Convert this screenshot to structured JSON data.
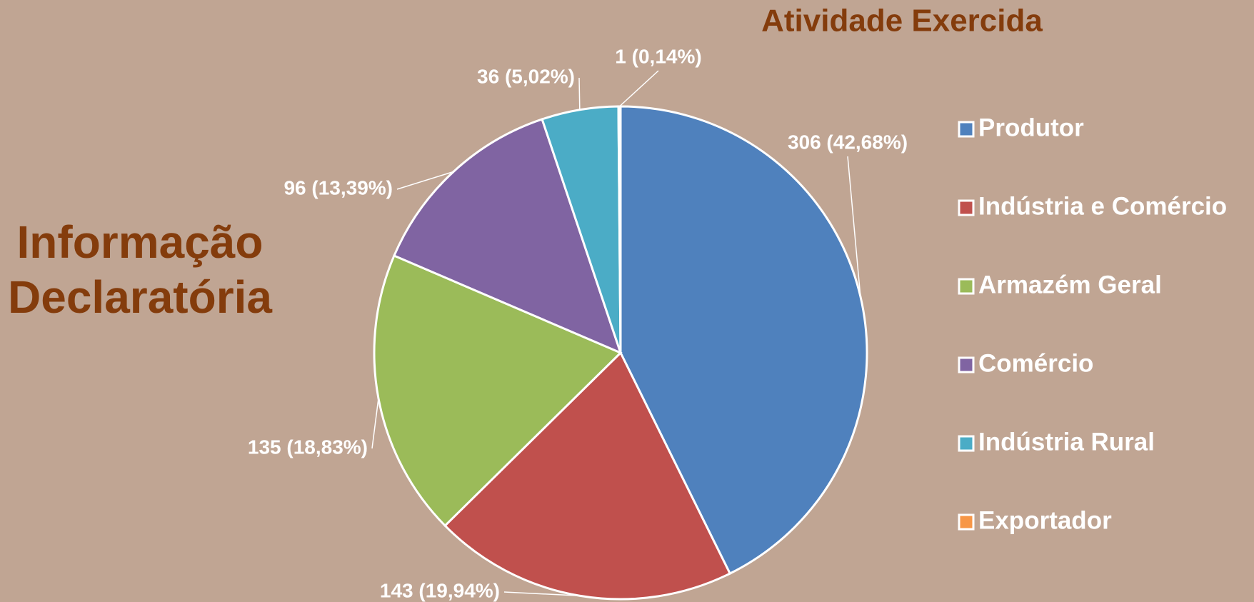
{
  "chart_data": {
    "type": "pie",
    "title": "Atividade Exercida",
    "annotations": [
      "Informação",
      "Declaratória"
    ],
    "categories": [
      "Produtor",
      "Indústria e Comércio",
      "Armazém Geral",
      "Comércio",
      "Indústria Rural",
      "Exportador"
    ],
    "values": [
      306,
      143,
      135,
      96,
      36,
      1
    ],
    "value_labels": [
      "306 (42,68%)",
      "143 (19,94%)",
      "135 (18,83%)",
      "96 (13,39%)",
      "36 (5,02%)",
      "1 (0,14%)"
    ],
    "colors": [
      "#4f81bd",
      "#c0504d",
      "#9bbb59",
      "#8064a2",
      "#4bacc6",
      "#f79646"
    ],
    "legend": "right"
  }
}
